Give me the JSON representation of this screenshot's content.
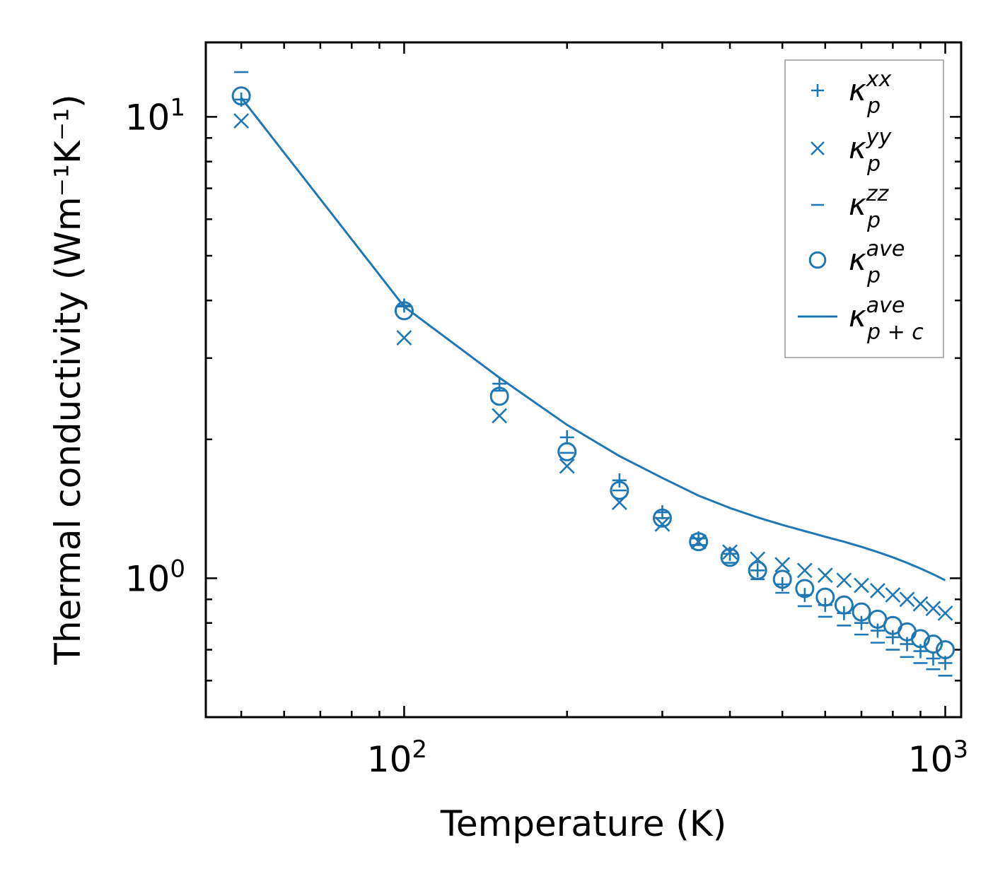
{
  "chart_data": {
    "type": "scatter",
    "title": "",
    "xlabel": "Temperature (K)",
    "ylabel": "Thermal conductivity (Wm⁻¹K⁻¹)",
    "xscale": "log",
    "yscale": "log",
    "xlim": [
      43,
      1070
    ],
    "ylim": [
      0.5,
      14.5
    ],
    "xticks": [
      {
        "value": 100,
        "base": "10",
        "exp": "2"
      },
      {
        "value": 1000,
        "base": "10",
        "exp": "3"
      }
    ],
    "yticks": [
      {
        "value": 1,
        "base": "10",
        "exp": "0"
      },
      {
        "value": 10,
        "base": "10",
        "exp": "1"
      }
    ],
    "color": "#1f77b4",
    "x": [
      50,
      100,
      150,
      200,
      250,
      300,
      350,
      400,
      450,
      500,
      550,
      600,
      650,
      700,
      750,
      800,
      850,
      900,
      950,
      1000
    ],
    "series": [
      {
        "name": "xx",
        "marker": "plus",
        "label_base": "κ",
        "label_sup": "xx",
        "label_sub": "p",
        "values": [
          10.9,
          3.9,
          2.64,
          2.02,
          1.63,
          1.39,
          1.22,
          1.13,
          1.04,
          0.97,
          0.92,
          0.875,
          0.84,
          0.8,
          0.77,
          0.745,
          0.72,
          0.695,
          0.67,
          0.655
        ]
      },
      {
        "name": "yy",
        "marker": "cross",
        "label_base": "κ",
        "label_sup": "yy",
        "label_sub": "p",
        "values": [
          9.8,
          3.32,
          2.25,
          1.75,
          1.46,
          1.31,
          1.2,
          1.14,
          1.1,
          1.07,
          1.04,
          1.015,
          0.99,
          0.965,
          0.94,
          0.92,
          0.9,
          0.88,
          0.86,
          0.84
        ]
      },
      {
        "name": "zz",
        "marker": "hline",
        "label_base": "κ",
        "label_sup": "zz",
        "label_sub": "p",
        "values": [
          12.5,
          3.88,
          2.55,
          1.87,
          1.55,
          1.35,
          1.18,
          1.08,
          0.995,
          0.93,
          0.87,
          0.825,
          0.79,
          0.755,
          0.725,
          0.7,
          0.675,
          0.655,
          0.635,
          0.615
        ]
      },
      {
        "name": "ave",
        "marker": "circle",
        "label_base": "κ",
        "label_sup": "ave",
        "label_sub": "p",
        "values": [
          11.1,
          3.8,
          2.48,
          1.88,
          1.55,
          1.35,
          1.2,
          1.11,
          1.04,
          0.995,
          0.95,
          0.91,
          0.875,
          0.845,
          0.815,
          0.79,
          0.765,
          0.74,
          0.72,
          0.7
        ]
      },
      {
        "name": "ave_total",
        "marker": "line",
        "label_base": "κ",
        "label_sup": "ave",
        "label_sub": "p + c",
        "values": [
          11.0,
          3.88,
          2.72,
          2.15,
          1.84,
          1.65,
          1.51,
          1.42,
          1.355,
          1.305,
          1.265,
          1.23,
          1.2,
          1.17,
          1.14,
          1.11,
          1.08,
          1.05,
          1.02,
          0.99
        ]
      }
    ],
    "legend": {
      "position": "top-right"
    }
  }
}
